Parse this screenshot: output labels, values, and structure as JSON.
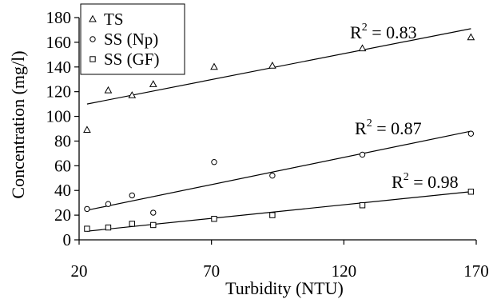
{
  "chart_data": {
    "type": "scatter",
    "xlabel": "Turbidity (NTU)",
    "ylabel": "Concentration (mg/l)",
    "xlim": [
      20,
      170
    ],
    "ylim": [
      0,
      180
    ],
    "xticks": [
      20,
      70,
      120,
      170
    ],
    "yticks": [
      0,
      20,
      40,
      60,
      80,
      100,
      120,
      140,
      160,
      180
    ],
    "grid": false,
    "legend_position": "top-left",
    "series": [
      {
        "name": "TS",
        "marker": "triangle",
        "x": [
          23,
          31,
          40,
          48,
          71,
          93,
          127,
          168
        ],
        "y": [
          89,
          121,
          117,
          126,
          140,
          141,
          155,
          164
        ],
        "trendline": {
          "x": [
            23,
            168
          ],
          "y": [
            110,
            171
          ]
        },
        "r2_label": "R",
        "r2_sup": "2",
        "r2_value": " = 0.83"
      },
      {
        "name": "SS (Np)",
        "marker": "circle",
        "x": [
          23,
          31,
          40,
          48,
          71,
          93,
          127,
          168
        ],
        "y": [
          25,
          29,
          36,
          22,
          63,
          52,
          69,
          86
        ],
        "trendline": {
          "x": [
            23,
            168
          ],
          "y": [
            24,
            88
          ]
        },
        "r2_label": "R",
        "r2_sup": "2",
        "r2_value": " = 0.87"
      },
      {
        "name": "SS (GF)",
        "marker": "square",
        "x": [
          23,
          31,
          40,
          48,
          71,
          93,
          127,
          168
        ],
        "y": [
          9,
          10,
          13,
          12,
          17,
          20,
          28,
          39
        ],
        "trendline": {
          "x": [
            23,
            168
          ],
          "y": [
            7,
            39
          ]
        },
        "r2_label": "R",
        "r2_sup": "2",
        "r2_value": " = 0.98"
      }
    ]
  }
}
